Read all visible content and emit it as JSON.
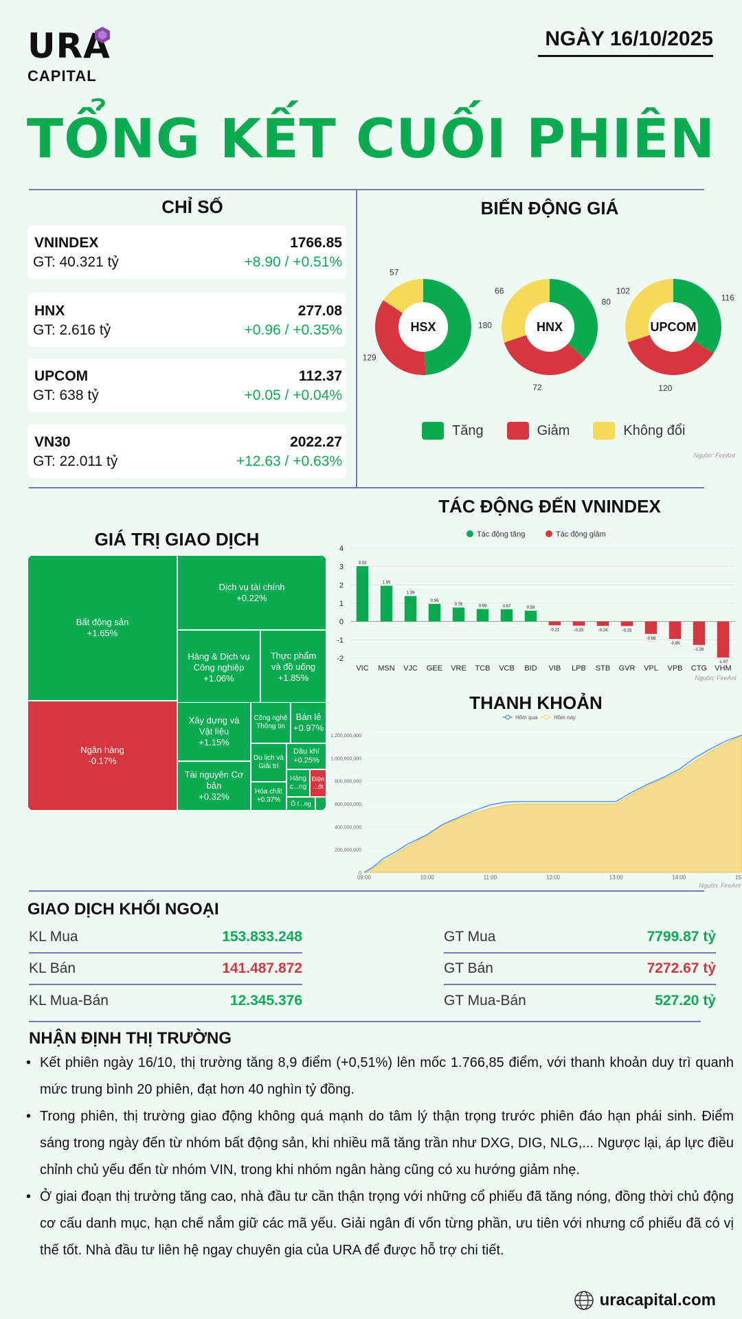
{
  "header": {
    "logo_main": "URA",
    "logo_sub": "CAPITAL",
    "date": "NGÀY 16/10/2025",
    "title": "TỔNG KẾT CUỐI PHIÊN"
  },
  "indices": {
    "title": "CHỈ SỐ",
    "items": [
      {
        "name": "VNINDEX",
        "gt": "GT: 40.321 tỷ",
        "value": "1766.85",
        "change": "+8.90 / +0.51%"
      },
      {
        "name": "HNX",
        "gt": "GT: 2.616 tỷ",
        "value": "277.08",
        "change": "+0.96 / +0.35%"
      },
      {
        "name": "UPCOM",
        "gt": "GT: 638 tỷ",
        "value": "112.37",
        "change": "+0.05 / +0.04%"
      },
      {
        "name": "VN30",
        "gt": "GT: 22.011 tỷ",
        "value": "2022.27",
        "change": "+12.63 / +0.63%"
      }
    ]
  },
  "price_movement": {
    "title": "BIẾN ĐỘNG GIÁ",
    "legend": {
      "up": "Tăng",
      "down": "Giảm",
      "flat": "Không đổi"
    },
    "source": "Nguồn: FireAnt"
  },
  "colors": {
    "up": "#0bab52",
    "down": "#d8363f",
    "flat": "#f7d95a",
    "line_prev": "#4a90e2",
    "area_today": "#f5dc8c"
  },
  "treemap": {
    "title": "GIÁ TRỊ GIAO DỊCH",
    "cells": {
      "bds": {
        "name": "Bất động sản",
        "pct": "+1.65%"
      },
      "nh": {
        "name": "Ngân hàng",
        "pct": "-0.17%"
      },
      "dvtc": {
        "name": "Dịch vụ tài chính",
        "pct": "+0.22%"
      },
      "hhdv": {
        "name": "Hàng & Dịch vụ Công nghiệp",
        "pct": "+1.06%"
      },
      "tp": {
        "name": "Thực phẩm và đồ uống",
        "pct": "+1.85%"
      },
      "xd": {
        "name": "Xây dựng và Vật liệu",
        "pct": "+1.15%"
      },
      "cn": {
        "name": "Công nghệ Thông tin",
        "pct": ""
      },
      "bl": {
        "name": "Bán lẻ",
        "pct": "+0.97%"
      },
      "tn": {
        "name": "Tài nguyên Cơ bản",
        "pct": "+0.32%"
      },
      "dl": {
        "name": "Du lịch và Giải trí",
        "pct": ""
      },
      "dk": {
        "name": "Dầu khí",
        "pct": "+0.25%"
      },
      "hc": {
        "name": "Hóa chất",
        "pct": "+0.37%"
      },
      "hang": {
        "name": "Hàng c...ng",
        "pct": ""
      },
      "dien": {
        "name": "Điện ...ốt",
        "pct": ""
      },
      "ot": {
        "name": "Ô t...ng",
        "pct": ""
      }
    }
  },
  "chart_data": [
    {
      "type": "pie",
      "title": "HSX",
      "categories": [
        "Tăng",
        "Giảm",
        "Không đổi"
      ],
      "values": [
        180,
        129,
        57
      ]
    },
    {
      "type": "pie",
      "title": "HNX",
      "categories": [
        "Tăng",
        "Giảm",
        "Không đổi"
      ],
      "values": [
        80,
        72,
        66
      ]
    },
    {
      "type": "pie",
      "title": "UPCOM",
      "categories": [
        "Tăng",
        "Giảm",
        "Không đổi"
      ],
      "values": [
        116,
        120,
        102
      ]
    },
    {
      "type": "bar",
      "title": "TÁC ĐỘNG ĐẾN VNINDEX",
      "legend": [
        "Tác động tăng",
        "Tác động giảm"
      ],
      "categories": [
        "VIC",
        "MSN",
        "VJC",
        "GEE",
        "VRE",
        "TCB",
        "VCB",
        "BID",
        "VIB",
        "LPB",
        "STB",
        "GVR",
        "VPL",
        "VPB",
        "CTG",
        "VHM"
      ],
      "values": [
        3.02,
        1.95,
        1.39,
        0.96,
        0.76,
        0.68,
        0.67,
        0.59,
        -0.21,
        -0.23,
        -0.24,
        -0.25,
        -0.68,
        -0.95,
        -1.28,
        -1.97
      ],
      "ylim": [
        -2,
        4
      ],
      "yticks": [
        "4",
        "3",
        "2",
        "1",
        "0",
        "-1",
        "-2"
      ],
      "source": "Nguồn: FireAnt"
    },
    {
      "type": "area",
      "title": "THANH KHOẢN",
      "legend": [
        "Hôm qua",
        "Hôm nay"
      ],
      "x_ticks": [
        "09:00",
        "10:00",
        "11:00",
        "12:00",
        "13:00",
        "14:00",
        "15:00"
      ],
      "y_ticks": [
        "0",
        "200,000,000",
        "400,000,000",
        "600,000,000",
        "800,000,000",
        "1,000,000,000",
        "1,200,000,000"
      ],
      "ylim": [
        0,
        1200000000
      ],
      "x_hours": [
        9.0,
        9.15,
        9.3,
        9.5,
        9.7,
        10.0,
        10.25,
        10.5,
        10.75,
        11.0,
        11.25,
        11.5,
        13.0,
        13.25,
        13.5,
        13.75,
        14.0,
        14.25,
        14.5,
        14.75,
        15.0
      ],
      "series": [
        {
          "name": "Hôm qua",
          "values": [
            0,
            50000000,
            120000000,
            180000000,
            250000000,
            330000000,
            420000000,
            480000000,
            540000000,
            590000000,
            615000000,
            620000000,
            620000000,
            700000000,
            770000000,
            830000000,
            900000000,
            1000000000,
            1080000000,
            1150000000,
            1200000000
          ]
        },
        {
          "name": "Hôm nay",
          "values": [
            0,
            40000000,
            100000000,
            160000000,
            230000000,
            330000000,
            420000000,
            470000000,
            520000000,
            560000000,
            590000000,
            600000000,
            600000000,
            680000000,
            760000000,
            820000000,
            880000000,
            970000000,
            1060000000,
            1130000000,
            1200000000
          ]
        }
      ],
      "source": "Nguồn: FireAnt"
    }
  ],
  "foreign": {
    "title": "GIAO DỊCH KHỐI NGOẠI",
    "left": [
      {
        "label": "KL Mua",
        "value": "153.833.248",
        "color": "green"
      },
      {
        "label": "KL Bán",
        "value": "141.487.872",
        "color": "red"
      },
      {
        "label": "KL Mua-Bán",
        "value": "12.345.376",
        "color": "green"
      }
    ],
    "right": [
      {
        "label": "GT Mua",
        "value": "7799.87 tỷ",
        "color": "green"
      },
      {
        "label": "GT Bán",
        "value": "7272.67 tỷ",
        "color": "red"
      },
      {
        "label": "GT Mua-Bán",
        "value": "527.20 tỷ",
        "color": "green"
      }
    ]
  },
  "analysis": {
    "title": "NHẬN ĐỊNH THỊ TRƯỜNG",
    "bullets": [
      "Kết phiên ngày 16/10, thị trường tăng 8,9 điểm (+0,51%) lên mốc 1.766,85 điểm, với thanh khoản duy trì quanh mức trung bình 20 phiên, đạt hơn 40 nghìn tỷ đồng.",
      "Trong phiên, thị trường giao động không quá mạnh do tâm lý thận trọng trước phiên đáo hạn phái sinh. Điểm sáng trong ngày đến từ nhóm bất động sản, khi nhiều mã tăng trần như DXG, DIG, NLG,... Ngược lại, áp lực điều chỉnh chủ yếu đến từ nhóm VIN, trong khi nhóm ngân hàng cũng có xu hướng giảm nhẹ.",
      "Ở giai đoạn thị trường tăng cao, nhà đầu tư cần thận trọng với những cổ phiếu đã tăng nóng, đồng thời chủ động cơ cấu danh mục, hạn chế nắm giữ các mã yếu. Giải ngân đi vốn từng phần, ưu tiên với nhưng cổ phiếu đã có vị thế tốt. Nhà đầu tư liên hệ ngay chuyên gia của URA để được hỗ trợ chi tiết."
    ]
  },
  "footer": {
    "site": "uracapital.com",
    "icon": "globe-icon"
  }
}
